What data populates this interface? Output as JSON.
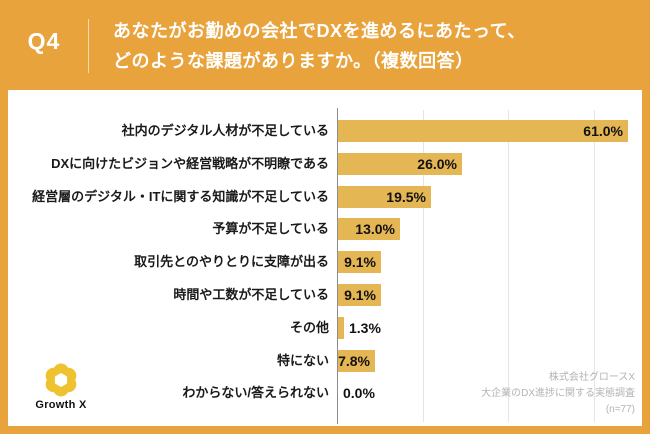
{
  "colors": {
    "accent": "#E8A33C",
    "bar": "#E5B654",
    "axis": "#8C8C8C",
    "gridline": "#E4E4E4",
    "label_text": "#1A1A1A",
    "footer_text": "#B3B3B3",
    "logo_gold": "#EFC22F"
  },
  "header": {
    "question_number": "Q4",
    "question_line1": "あなたがお勤めの会社でDXを進めるにあたって、",
    "question_line2": "どのような課題がありますか。（複数回答）"
  },
  "chart_data": {
    "type": "bar",
    "orientation": "horizontal",
    "title": "Q4 あなたがお勤めの会社でDXを進めるにあたって、どのような課題がありますか。（複数回答）",
    "categories": [
      "社内のデジタル人材が不足している",
      "DXに向けたビジョンや経営戦略が不明瞭である",
      "経営層のデジタル・ITに関する知識が不足している",
      "予算が不足している",
      "取引先とのやりとりに支障が出る",
      "時間や工数が不足している",
      "その他",
      "特にない",
      "わからない/答えられない"
    ],
    "values": [
      61.0,
      26.0,
      19.5,
      13.0,
      9.1,
      9.1,
      1.3,
      7.8,
      0.0
    ],
    "value_labels": [
      "61.0%",
      "26.0%",
      "19.5%",
      "13.0%",
      "9.1%",
      "9.1%",
      "1.3%",
      "7.8%",
      "0.0%"
    ],
    "xlabel": "",
    "ylabel": "",
    "xlim": [
      0,
      64
    ],
    "grid": true,
    "gridline_percents": [
      18,
      36,
      54
    ],
    "legend": false,
    "bar_color": "#E5B654"
  },
  "footer": {
    "logo_label": "Growth X",
    "source_line1": "株式会社グロースX",
    "source_line2": "大企業のDX進捗に関する実態調査",
    "source_line3": "(n=77)"
  }
}
